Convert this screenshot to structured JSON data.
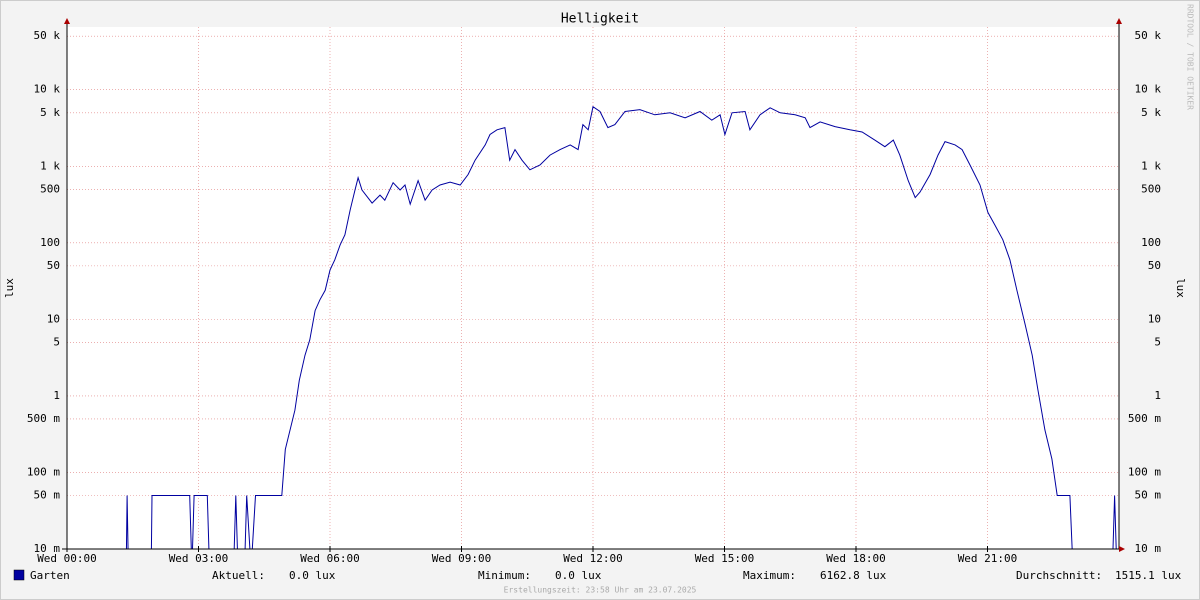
{
  "chart_data": {
    "type": "line",
    "title": "Helligkeit",
    "y_label": "lux",
    "watermark": "RRDTOOL / TOBI OETIKER",
    "footer": "Erstellungszeit: 23:58 Uhr am 23.07.2025",
    "log_scale": true,
    "grid": true,
    "xlim": [
      0,
      24
    ],
    "xticks": [
      {
        "value": 0,
        "label": "Wed 00:00"
      },
      {
        "value": 3,
        "label": "Wed 03:00"
      },
      {
        "value": 6,
        "label": "Wed 06:00"
      },
      {
        "value": 9,
        "label": "Wed 09:00"
      },
      {
        "value": 12,
        "label": "Wed 12:00"
      },
      {
        "value": 15,
        "label": "Wed 15:00"
      },
      {
        "value": 18,
        "label": "Wed 18:00"
      },
      {
        "value": 21,
        "label": "Wed 21:00"
      }
    ],
    "ylim": [
      0.01,
      66000
    ],
    "yticks": [
      {
        "value": 0.01,
        "label": "10 m"
      },
      {
        "value": 0.05,
        "label": "50 m"
      },
      {
        "value": 0.1,
        "label": "100 m"
      },
      {
        "value": 0.5,
        "label": "500 m"
      },
      1,
      5,
      10,
      50,
      100,
      500,
      {
        "value": 1000,
        "label": "1 k"
      },
      {
        "value": 5000,
        "label": "5 k"
      },
      {
        "value": 10000,
        "label": "10 k"
      },
      {
        "value": 50000,
        "label": "50 k"
      }
    ],
    "series": [
      {
        "name": "Garten",
        "color": "#0000a0",
        "x": [
          0,
          1.35,
          1.37,
          1.4,
          1.92,
          1.94,
          2.8,
          2.85,
          2.9,
          3.2,
          3.25,
          3.8,
          3.85,
          3.9,
          4.05,
          4.1,
          4.2,
          4.3,
          4.9,
          4.98,
          5.2,
          5.3,
          5.43,
          5.54,
          5.66,
          5.77,
          5.89,
          6.0,
          6.11,
          6.23,
          6.34,
          6.46,
          6.57,
          6.64,
          6.73,
          6.96,
          7.14,
          7.25,
          7.44,
          7.6,
          7.71,
          7.83,
          8.01,
          8.17,
          8.33,
          8.51,
          8.74,
          8.97,
          9.15,
          9.31,
          9.54,
          9.65,
          9.81,
          9.99,
          10.1,
          10.22,
          10.38,
          10.56,
          10.79,
          11.02,
          11.25,
          11.48,
          11.66,
          11.77,
          11.89,
          12.0,
          12.16,
          12.34,
          12.5,
          12.73,
          13.07,
          13.41,
          13.76,
          14.1,
          14.44,
          14.71,
          14.9,
          15.01,
          15.17,
          15.47,
          15.58,
          15.81,
          16.04,
          16.27,
          16.61,
          16.84,
          16.95,
          17.18,
          17.52,
          17.86,
          18.14,
          18.43,
          18.66,
          18.85,
          19.0,
          19.19,
          19.35,
          19.46,
          19.69,
          19.87,
          20.03,
          20.26,
          20.42,
          20.6,
          20.83,
          21.01,
          21.17,
          21.35,
          21.51,
          21.67,
          21.86,
          22.02,
          22.15,
          22.31,
          22.47,
          22.59,
          22.88,
          22.95,
          23.85,
          23.9,
          23.95
        ],
        "values": [
          0,
          0,
          0.05,
          0,
          0,
          0.05,
          0.05,
          0,
          0.05,
          0.05,
          0,
          0,
          0.05,
          0,
          0,
          0.05,
          0,
          0.05,
          0.05,
          0.2,
          0.65,
          1.6,
          3.4,
          5.4,
          13,
          18,
          24,
          44,
          60,
          94,
          127,
          270,
          490,
          710,
          490,
          330,
          420,
          360,
          610,
          490,
          570,
          320,
          650,
          360,
          490,
          570,
          620,
          570,
          780,
          1200,
          1900,
          2600,
          3000,
          3200,
          1200,
          1650,
          1200,
          900,
          1040,
          1400,
          1650,
          1900,
          1650,
          3500,
          3000,
          6000,
          5200,
          3200,
          3500,
          5200,
          5500,
          4700,
          5000,
          4300,
          5200,
          4000,
          4700,
          2600,
          5000,
          5200,
          3000,
          4700,
          5800,
          5000,
          4700,
          4300,
          3200,
          3800,
          3300,
          3000,
          2800,
          2200,
          1800,
          2200,
          1400,
          650,
          390,
          460,
          780,
          1400,
          2100,
          1900,
          1650,
          1040,
          570,
          250,
          170,
          110,
          60,
          24,
          8.5,
          3.4,
          1.2,
          0.36,
          0.15,
          0.05,
          0.05,
          0,
          0,
          0.05,
          0
        ]
      }
    ],
    "legend_stats": [
      {
        "label": "Aktuell:",
        "value": "0.0 lux"
      },
      {
        "label": "Minimum:",
        "value": "0.0 lux"
      },
      {
        "label": "Maximum:",
        "value": "6162.8 lux"
      },
      {
        "label": "Durchschnitt:",
        "value": "1515.1 lux"
      }
    ]
  }
}
